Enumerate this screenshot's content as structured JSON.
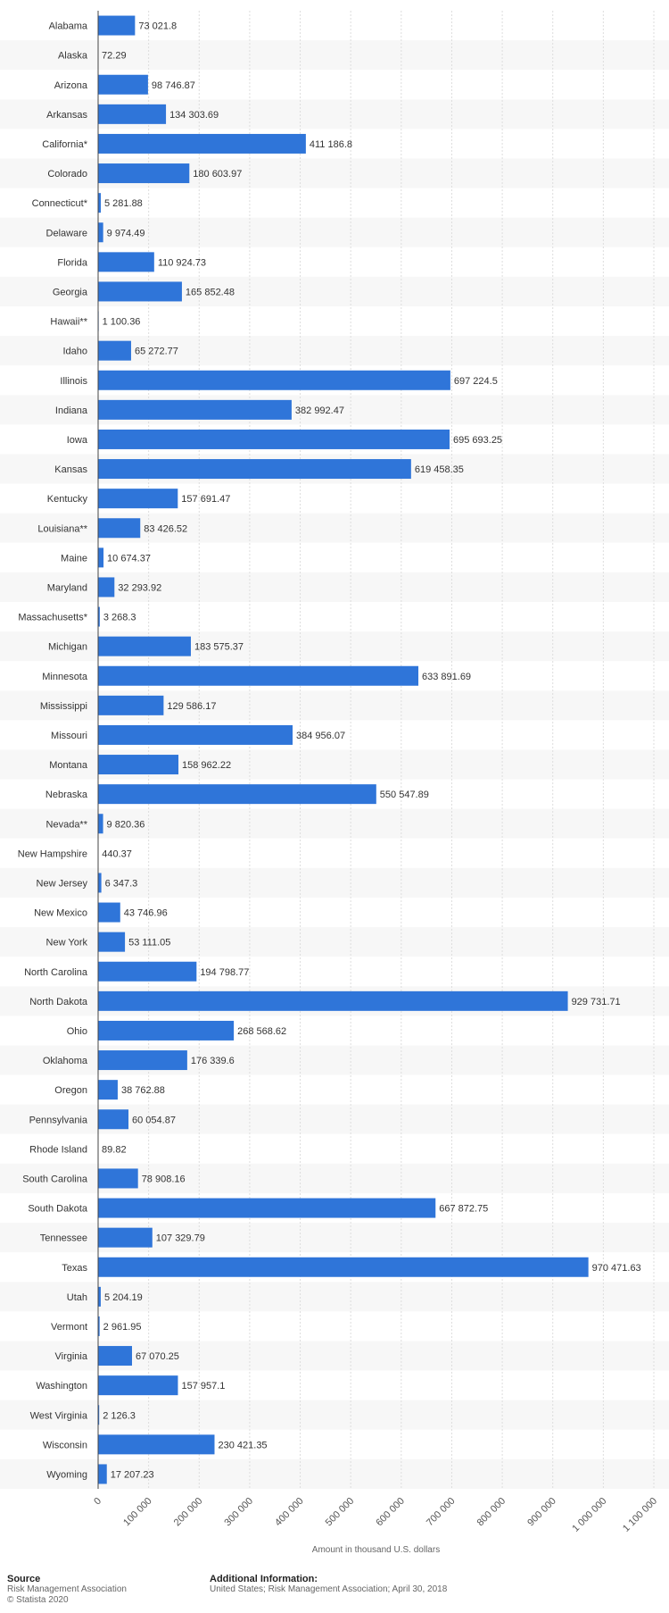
{
  "chart_data": {
    "type": "bar",
    "orientation": "horizontal",
    "xlabel": "Amount in thousand U.S. dollars",
    "xlim": [
      0,
      1100000
    ],
    "xticks": [
      0,
      100000,
      200000,
      300000,
      400000,
      500000,
      600000,
      700000,
      800000,
      900000,
      1000000,
      1100000
    ],
    "xtick_labels": [
      "0",
      "100 000",
      "200 000",
      "300 000",
      "400 000",
      "500 000",
      "600 000",
      "700 000",
      "800 000",
      "900 000",
      "1 000 000",
      "1 100 000"
    ],
    "grid": true,
    "bar_color": "#2f75d9",
    "categories": [
      "Alabama",
      "Alaska",
      "Arizona",
      "Arkansas",
      "California*",
      "Colorado",
      "Connecticut*",
      "Delaware",
      "Florida",
      "Georgia",
      "Hawaii**",
      "Idaho",
      "Illinois",
      "Indiana",
      "Iowa",
      "Kansas",
      "Kentucky",
      "Louisiana**",
      "Maine",
      "Maryland",
      "Massachusetts*",
      "Michigan",
      "Minnesota",
      "Mississippi",
      "Missouri",
      "Montana",
      "Nebraska",
      "Nevada**",
      "New Hampshire",
      "New Jersey",
      "New Mexico",
      "New York",
      "North Carolina",
      "North Dakota",
      "Ohio",
      "Oklahoma",
      "Oregon",
      "Pennsylvania",
      "Rhode Island",
      "South Carolina",
      "South Dakota",
      "Tennessee",
      "Texas",
      "Utah",
      "Vermont",
      "Virginia",
      "Washington",
      "West Virginia",
      "Wisconsin",
      "Wyoming"
    ],
    "values": [
      73021.8,
      72.29,
      98746.87,
      134303.69,
      411186.8,
      180603.97,
      5281.88,
      9974.49,
      110924.73,
      165852.48,
      1100.36,
      65272.77,
      697224.5,
      382992.47,
      695693.25,
      619458.35,
      157691.47,
      83426.52,
      10674.37,
      32293.92,
      3268.3,
      183575.37,
      633891.69,
      129586.17,
      384956.07,
      158962.22,
      550547.89,
      9820.36,
      440.37,
      6347.3,
      43746.96,
      53111.05,
      194798.77,
      929731.71,
      268568.62,
      176339.6,
      38762.88,
      60054.87,
      89.82,
      78908.16,
      667872.75,
      107329.79,
      970471.63,
      5204.19,
      2961.95,
      67070.25,
      157957.1,
      2126.3,
      230421.35,
      17207.23
    ],
    "value_labels": [
      "73 021.8",
      "72.29",
      "98 746.87",
      "134 303.69",
      "411 186.8",
      "180 603.97",
      "5 281.88",
      "9 974.49",
      "110 924.73",
      "165 852.48",
      "1 100.36",
      "65 272.77",
      "697 224.5",
      "382 992.47",
      "695 693.25",
      "619 458.35",
      "157 691.47",
      "83 426.52",
      "10 674.37",
      "32 293.92",
      "3 268.3",
      "183 575.37",
      "633 891.69",
      "129 586.17",
      "384 956.07",
      "158 962.22",
      "550 547.89",
      "9 820.36",
      "440.37",
      "6 347.3",
      "43 746.96",
      "53 111.05",
      "194 798.77",
      "929 731.71",
      "268 568.62",
      "176 339.6",
      "38 762.88",
      "60 054.87",
      "89.82",
      "78 908.16",
      "667 872.75",
      "107 329.79",
      "970 471.63",
      "5 204.19",
      "2 961.95",
      "67 070.25",
      "157 957.1",
      "2 126.3",
      "230 421.35",
      "17 207.23"
    ]
  },
  "footer": {
    "source_heading": "Source",
    "source_lines": [
      "Risk Management Association",
      "© Statista 2020"
    ],
    "info_heading": "Additional Information:",
    "info_text": "United States; Risk Management Association; April 30, 2018"
  }
}
